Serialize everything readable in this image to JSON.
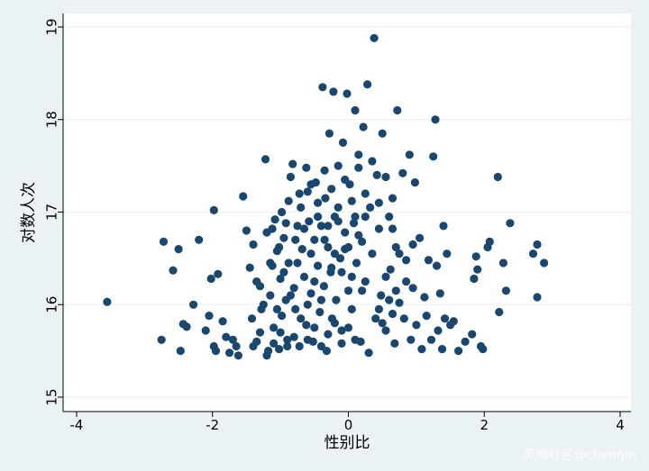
{
  "chart_data": {
    "type": "scatter",
    "title": "",
    "xlabel": "性别比",
    "ylabel": "对数人次",
    "xlim": [
      -4,
      4
    ],
    "ylim": [
      15,
      19
    ],
    "xticks": [
      -4,
      -2,
      0,
      2,
      4
    ],
    "yticks": [
      15,
      16,
      17,
      18,
      19
    ],
    "grid": "horizontal",
    "colors": {
      "background": "#eaf2f3",
      "plot_background": "#ffffff",
      "point": "#1a476f",
      "axis": "#000000"
    },
    "points": [
      [
        -3.55,
        16.03
      ],
      [
        -2.75,
        15.62
      ],
      [
        -2.72,
        16.68
      ],
      [
        -2.58,
        16.37
      ],
      [
        -2.5,
        16.6
      ],
      [
        -2.47,
        15.5
      ],
      [
        -2.43,
        15.79
      ],
      [
        -2.38,
        15.76
      ],
      [
        -2.28,
        16.0
      ],
      [
        -2.2,
        16.7
      ],
      [
        -2.1,
        15.72
      ],
      [
        -2.05,
        15.88
      ],
      [
        -2.02,
        16.28
      ],
      [
        -1.98,
        17.02
      ],
      [
        -1.98,
        15.55
      ],
      [
        -1.95,
        15.5
      ],
      [
        -1.92,
        16.33
      ],
      [
        -1.85,
        15.82
      ],
      [
        -1.8,
        15.65
      ],
      [
        -1.75,
        15.48
      ],
      [
        -1.7,
        15.62
      ],
      [
        -1.65,
        15.55
      ],
      [
        -1.62,
        15.45
      ],
      [
        -1.55,
        17.17
      ],
      [
        -1.5,
        16.8
      ],
      [
        -1.45,
        16.4
      ],
      [
        -1.42,
        15.85
      ],
      [
        -1.4,
        16.65
      ],
      [
        -1.35,
        15.6
      ],
      [
        -1.3,
        16.2
      ],
      [
        -1.28,
        15.95
      ],
      [
        -1.22,
        17.57
      ],
      [
        -1.2,
        16.78
      ],
      [
        -1.18,
        15.5
      ],
      [
        -1.15,
        16.1
      ],
      [
        -1.12,
        16.42
      ],
      [
        -1.1,
        15.75
      ],
      [
        -1.08,
        16.92
      ],
      [
        -1.05,
        16.58
      ],
      [
        -1.02,
        15.52
      ],
      [
        -1.0,
        16.28
      ],
      [
        -0.98,
        15.88
      ],
      [
        -0.95,
        16.72
      ],
      [
        -0.92,
        16.05
      ],
      [
        -0.9,
        15.62
      ],
      [
        -0.88,
        16.45
      ],
      [
        -0.85,
        17.38
      ],
      [
        -0.82,
        17.52
      ],
      [
        -0.8,
        16.18
      ],
      [
        -0.78,
        15.95
      ],
      [
        -0.75,
        16.85
      ],
      [
        -0.72,
        15.55
      ],
      [
        -0.7,
        17.05
      ],
      [
        -0.68,
        16.6
      ],
      [
        -0.65,
        16.3
      ],
      [
        -0.62,
        15.78
      ],
      [
        -0.6,
        17.22
      ],
      [
        -0.58,
        16.9
      ],
      [
        -0.55,
        16.12
      ],
      [
        -0.52,
        15.6
      ],
      [
        -0.5,
        16.7
      ],
      [
        -0.48,
        17.32
      ],
      [
        -0.45,
        16.42
      ],
      [
        -0.42,
        15.92
      ],
      [
        -0.4,
        16.85
      ],
      [
        -0.38,
        18.35
      ],
      [
        -0.36,
        16.2
      ],
      [
        -0.34,
        17.15
      ],
      [
        -0.32,
        15.5
      ],
      [
        -0.3,
        16.62
      ],
      [
        -0.28,
        17.85
      ],
      [
        -0.26,
        16.35
      ],
      [
        -0.24,
        15.85
      ],
      [
        -0.22,
        18.3
      ],
      [
        -0.2,
        16.95
      ],
      [
        -0.18,
        16.05
      ],
      [
        -0.15,
        17.5
      ],
      [
        -0.12,
        16.5
      ],
      [
        -0.1,
        15.72
      ],
      [
        -0.08,
        17.75
      ],
      [
        -0.05,
        16.78
      ],
      [
        -0.02,
        18.28
      ],
      [
        0.0,
        16.15
      ],
      [
        0.02,
        17.3
      ],
      [
        0.05,
        15.95
      ],
      [
        0.08,
        16.88
      ],
      [
        0.1,
        18.1
      ],
      [
        0.12,
        16.45
      ],
      [
        0.15,
        17.62
      ],
      [
        0.18,
        15.6
      ],
      [
        0.2,
        16.68
      ],
      [
        0.22,
        17.92
      ],
      [
        0.25,
        16.25
      ],
      [
        0.28,
        18.38
      ],
      [
        0.3,
        15.48
      ],
      [
        0.32,
        17.05
      ],
      [
        0.35,
        16.55
      ],
      [
        0.38,
        18.88
      ],
      [
        0.4,
        15.85
      ],
      [
        0.42,
        17.4
      ],
      [
        0.45,
        16.82
      ],
      [
        0.48,
        16.1
      ],
      [
        0.5,
        17.85
      ],
      [
        0.55,
        15.72
      ],
      [
        0.6,
        16.95
      ],
      [
        0.62,
        16.38
      ],
      [
        0.65,
        17.15
      ],
      [
        0.68,
        15.58
      ],
      [
        0.7,
        16.62
      ],
      [
        0.72,
        18.1
      ],
      [
        0.75,
        16.02
      ],
      [
        0.8,
        17.42
      ],
      [
        0.82,
        15.85
      ],
      [
        0.85,
        16.48
      ],
      [
        0.9,
        17.62
      ],
      [
        0.92,
        15.62
      ],
      [
        0.95,
        16.18
      ],
      [
        0.98,
        17.32
      ],
      [
        1.0,
        15.78
      ],
      [
        1.05,
        16.72
      ],
      [
        1.08,
        15.52
      ],
      [
        1.12,
        16.08
      ],
      [
        1.15,
        15.88
      ],
      [
        1.18,
        16.48
      ],
      [
        1.22,
        15.62
      ],
      [
        1.25,
        17.6
      ],
      [
        1.28,
        18.0
      ],
      [
        1.3,
        16.42
      ],
      [
        1.32,
        15.72
      ],
      [
        1.35,
        16.12
      ],
      [
        1.38,
        15.52
      ],
      [
        1.4,
        16.85
      ],
      [
        1.42,
        15.85
      ],
      [
        1.45,
        16.55
      ],
      [
        1.5,
        15.78
      ],
      [
        1.55,
        15.82
      ],
      [
        1.62,
        15.5
      ],
      [
        1.72,
        15.6
      ],
      [
        1.82,
        15.68
      ],
      [
        1.85,
        16.28
      ],
      [
        1.88,
        16.52
      ],
      [
        1.9,
        16.38
      ],
      [
        1.95,
        15.55
      ],
      [
        1.98,
        15.52
      ],
      [
        2.05,
        16.62
      ],
      [
        2.08,
        16.68
      ],
      [
        2.2,
        17.38
      ],
      [
        2.22,
        15.92
      ],
      [
        2.28,
        16.45
      ],
      [
        2.32,
        16.15
      ],
      [
        2.38,
        16.88
      ],
      [
        2.72,
        16.55
      ],
      [
        2.78,
        16.65
      ],
      [
        2.78,
        16.08
      ],
      [
        2.88,
        16.45
      ],
      [
        -0.6,
        16.0
      ],
      [
        -0.55,
        16.55
      ],
      [
        -0.45,
        16.95
      ],
      [
        -0.35,
        16.7
      ],
      [
        -0.25,
        16.4
      ],
      [
        -0.15,
        16.9
      ],
      [
        -0.05,
        16.6
      ],
      [
        0.05,
        16.3
      ],
      [
        0.15,
        16.75
      ],
      [
        0.25,
        16.95
      ],
      [
        -0.5,
        16.25
      ],
      [
        -0.4,
        16.05
      ],
      [
        -0.3,
        16.85
      ],
      [
        -0.2,
        16.55
      ],
      [
        -0.1,
        16.35
      ],
      [
        0.0,
        16.62
      ],
      [
        0.1,
        16.95
      ],
      [
        0.2,
        16.15
      ],
      [
        -0.65,
        16.82
      ],
      [
        -0.75,
        16.45
      ],
      [
        -0.85,
        16.1
      ],
      [
        -0.95,
        16.35
      ],
      [
        -1.05,
        15.95
      ],
      [
        -0.7,
        15.85
      ],
      [
        -0.8,
        15.65
      ],
      [
        -0.9,
        15.55
      ],
      [
        -1.0,
        15.7
      ],
      [
        -1.1,
        15.58
      ],
      [
        -0.6,
        15.62
      ],
      [
        -0.5,
        15.75
      ],
      [
        -0.4,
        15.55
      ],
      [
        -0.3,
        15.68
      ],
      [
        -0.2,
        15.8
      ],
      [
        -0.1,
        15.58
      ],
      [
        0.0,
        15.75
      ],
      [
        0.1,
        15.62
      ],
      [
        -0.55,
        17.3
      ],
      [
        -0.45,
        17.1
      ],
      [
        -0.35,
        17.45
      ],
      [
        -0.25,
        17.25
      ],
      [
        -0.15,
        17.05
      ],
      [
        -0.05,
        17.35
      ],
      [
        0.05,
        17.12
      ],
      [
        0.15,
        17.48
      ],
      [
        0.25,
        17.2
      ],
      [
        0.35,
        17.55
      ],
      [
        -0.62,
        17.48
      ],
      [
        -0.72,
        17.2
      ],
      [
        0.45,
        17.1
      ],
      [
        0.55,
        17.38
      ],
      [
        0.65,
        16.82
      ],
      [
        0.75,
        16.55
      ],
      [
        0.85,
        16.25
      ],
      [
        0.95,
        16.65
      ],
      [
        0.55,
        16.3
      ],
      [
        0.6,
        16.05
      ],
      [
        0.45,
        15.95
      ],
      [
        0.5,
        15.8
      ],
      [
        0.65,
        15.9
      ],
      [
        0.7,
        16.15
      ],
      [
        -1.25,
        16.0
      ],
      [
        -1.35,
        16.25
      ],
      [
        -1.15,
        16.45
      ],
      [
        -1.3,
        15.7
      ],
      [
        -1.2,
        15.45
      ],
      [
        -1.4,
        15.55
      ],
      [
        -0.92,
        16.88
      ],
      [
        -1.02,
        16.62
      ],
      [
        -0.88,
        17.12
      ],
      [
        -0.98,
        17.0
      ],
      [
        -1.12,
        16.82
      ],
      [
        -0.78,
        16.7
      ]
    ]
  },
  "watermark": "风闻社区@chenqin"
}
